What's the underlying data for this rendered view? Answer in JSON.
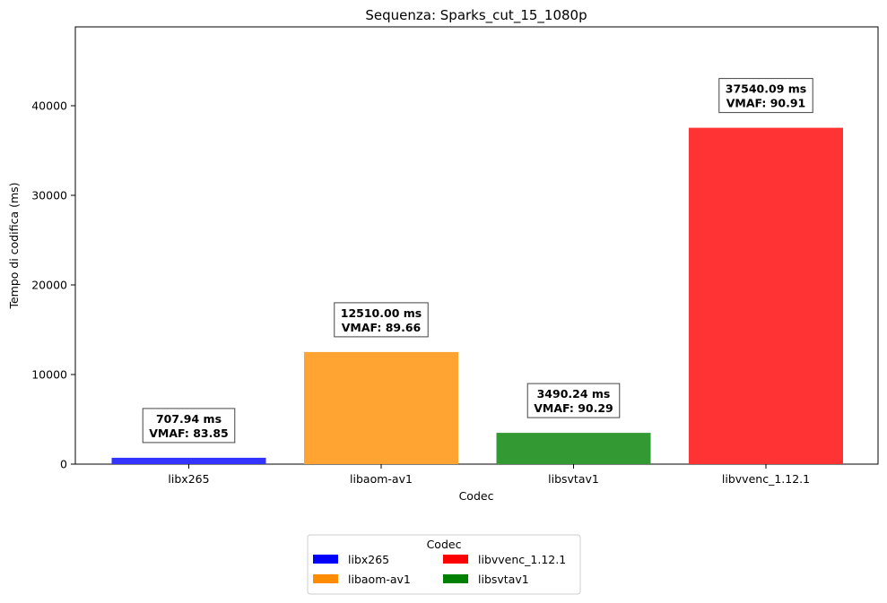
{
  "chart_data": {
    "type": "bar",
    "title": "Sequenza: Sparks_cut_15_1080p",
    "xlabel": "Codec",
    "ylabel": "Tempo di codifica (ms)",
    "ylim": [
      0,
      48800
    ],
    "yticks": [
      0,
      10000,
      20000,
      30000,
      40000
    ],
    "ytick_labels": [
      "0",
      "10000",
      "20000",
      "30000",
      "40000"
    ],
    "categories": [
      "libx265",
      "libaom-av1",
      "libsvtav1",
      "libvvenc_1.12.1"
    ],
    "values": [
      707.94,
      12510.0,
      3490.24,
      37540.09
    ],
    "bar_colors": [
      "#3333ff",
      "#ffa333",
      "#339933",
      "#ff3333"
    ],
    "annotations": [
      {
        "line1": "707.94 ms",
        "line2": "VMAF: 83.85"
      },
      {
        "line1": "12510.00 ms",
        "line2": "VMAF: 89.66"
      },
      {
        "line1": "3490.24 ms",
        "line2": "VMAF: 90.29"
      },
      {
        "line1": "37540.09 ms",
        "line2": "VMAF: 90.91"
      }
    ],
    "legend": {
      "title": "Codec",
      "placement": "bottom-center",
      "columns": 2,
      "entries": [
        {
          "label": "libx265",
          "color": "#0000ff"
        },
        {
          "label": "libaom-av1",
          "color": "#ff8c00"
        },
        {
          "label": "libvvenc_1.12.1",
          "color": "#ff0000"
        },
        {
          "label": "libsvtav1",
          "color": "#008000"
        }
      ]
    },
    "grid": false
  }
}
